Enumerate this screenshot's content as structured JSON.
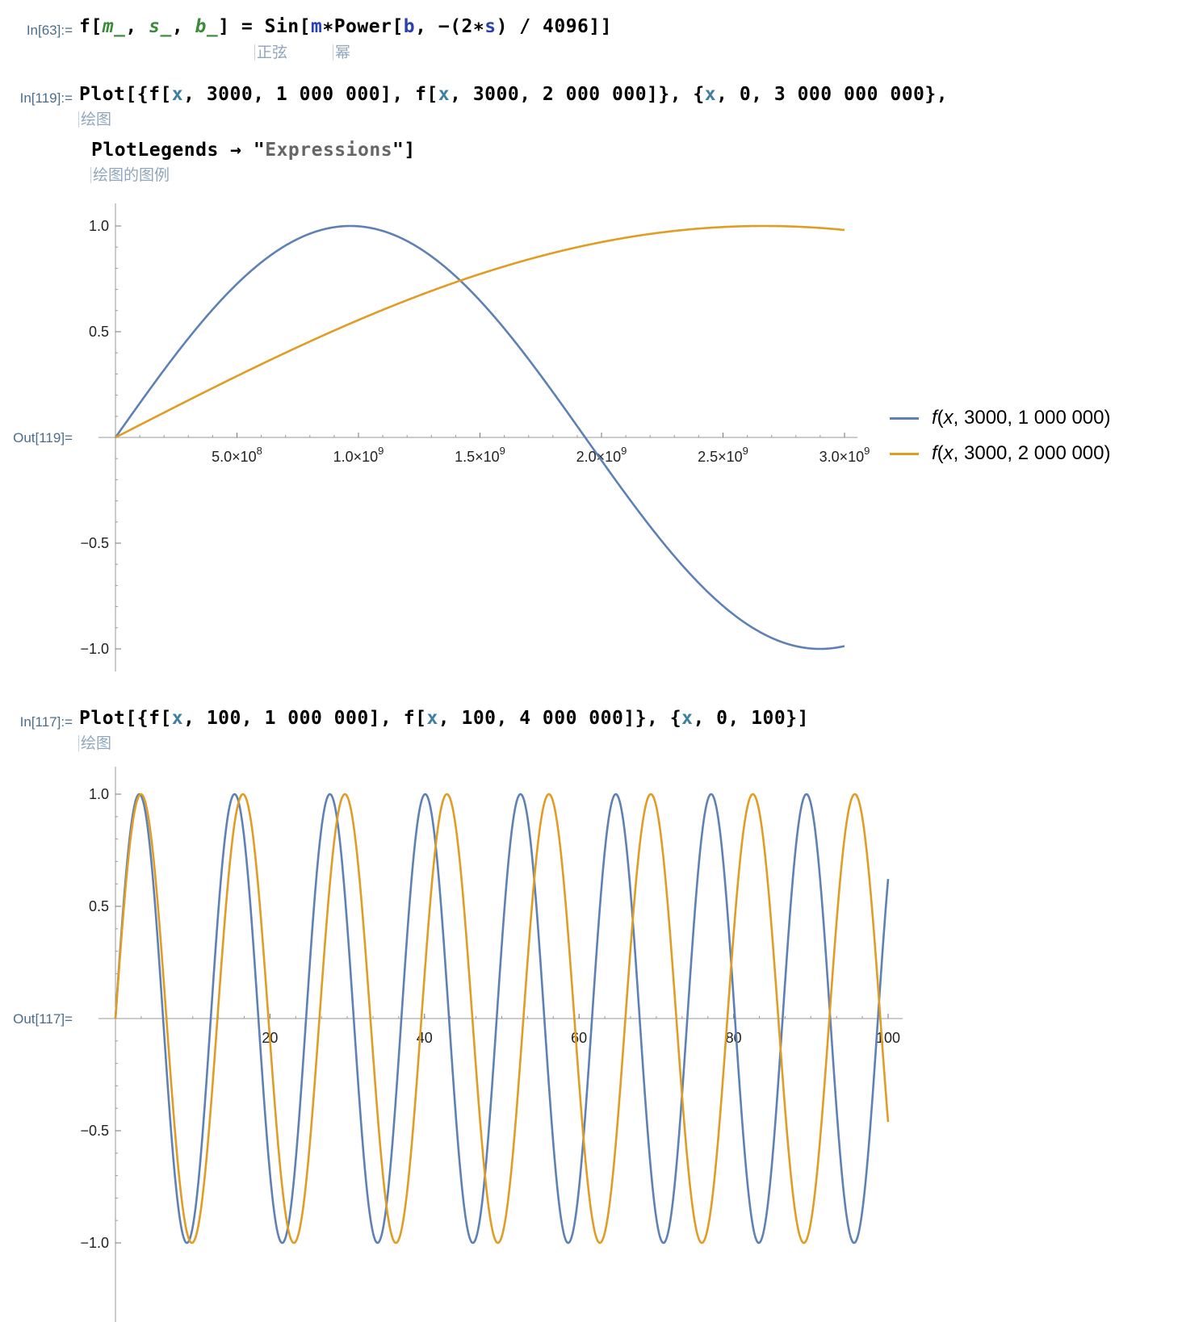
{
  "cells": {
    "c1": {
      "label": "In[63]:=",
      "code": {
        "t1": "f[",
        "m": "m_",
        "c1": ", ",
        "s": "s_",
        "c2": ", ",
        "b": "b_",
        "t2": "] = Sin[",
        "m2": "m",
        "t3": "∗Power[",
        "b2": "b",
        "t4": ", −(2∗",
        "s2": "s",
        "t5": ") / 4096]]"
      },
      "hints": [
        "正弦",
        "幂"
      ]
    },
    "c2": {
      "in_label": "In[119]:=",
      "out_label": "Out[119]=",
      "line1": {
        "t1": "Plot[{f[",
        "x1": "x",
        "t2": ", 3000, 1 000 000], f[",
        "x2": "x",
        "t3": ", 3000, 2 000 000]}, {",
        "x3": "x",
        "t4": ", 0, 3 000 000 000},"
      },
      "line2": {
        "t1": "PlotLegends → \"",
        "str": "Expressions",
        "t2": "\"]"
      },
      "hints": [
        "绘图",
        "绘图的图例"
      ]
    },
    "c3": {
      "in_label": "In[117]:=",
      "out_label": "Out[117]=",
      "line1": {
        "t1": "Plot[{f[",
        "x1": "x",
        "t2": ", 100, 1 000 000], f[",
        "x2": "x",
        "t3": ", 100, 4 000 000]}, {",
        "x3": "x",
        "t4": ", 0, 100}]"
      },
      "hints": [
        "绘图"
      ]
    }
  },
  "colors": {
    "series1": "#5e81b5",
    "series2": "#e19c24"
  },
  "chart_data": [
    {
      "type": "line",
      "function": "f(x, s, b) = sin(x * b^(-(2 s)/4096))",
      "x_range": [
        0,
        3000000000
      ],
      "ylim": [
        -1,
        1
      ],
      "x_ticks": [
        {
          "value": 500000000,
          "mant": "5.0",
          "exp": "8"
        },
        {
          "value": 1000000000,
          "mant": "1.0",
          "exp": "9"
        },
        {
          "value": 1500000000,
          "mant": "1.5",
          "exp": "9"
        },
        {
          "value": 2000000000,
          "mant": "2.0",
          "exp": "9"
        },
        {
          "value": 2500000000,
          "mant": "2.5",
          "exp": "9"
        },
        {
          "value": 3000000000,
          "mant": "3.0",
          "exp": "9"
        }
      ],
      "y_ticks": [
        {
          "value": 1,
          "label": "1.0"
        },
        {
          "value": 0.5,
          "label": "0.5"
        },
        {
          "value": -0.5,
          "label": "−0.5"
        },
        {
          "value": -1,
          "label": "−1.0"
        }
      ],
      "series": [
        {
          "s": 3000,
          "b": 1000000,
          "legend": {
            "f": "f",
            "x": "x",
            "rest": ", 3000, 1 000 000)"
          }
        },
        {
          "s": 3000,
          "b": 2000000,
          "legend": {
            "f": "f",
            "x": "x",
            "rest": ", 3000, 2 000 000)"
          }
        }
      ],
      "legend_position": "right"
    },
    {
      "type": "line",
      "function": "f(x, s, b) = sin(x * b^(-(2 s)/4096))",
      "x_range": [
        0,
        100
      ],
      "ylim": [
        -1,
        1
      ],
      "x_ticks": [
        {
          "value": 20,
          "label": "20"
        },
        {
          "value": 40,
          "label": "40"
        },
        {
          "value": 60,
          "label": "60"
        },
        {
          "value": 80,
          "label": "80"
        },
        {
          "value": 100,
          "label": "100"
        }
      ],
      "y_ticks": [
        {
          "value": 1,
          "label": "1.0"
        },
        {
          "value": 0.5,
          "label": "0.5"
        },
        {
          "value": -0.5,
          "label": "−0.5"
        },
        {
          "value": -1,
          "label": "−1.0"
        }
      ],
      "series": [
        {
          "s": 100,
          "b": 1000000
        },
        {
          "s": 100,
          "b": 4000000
        }
      ]
    }
  ]
}
